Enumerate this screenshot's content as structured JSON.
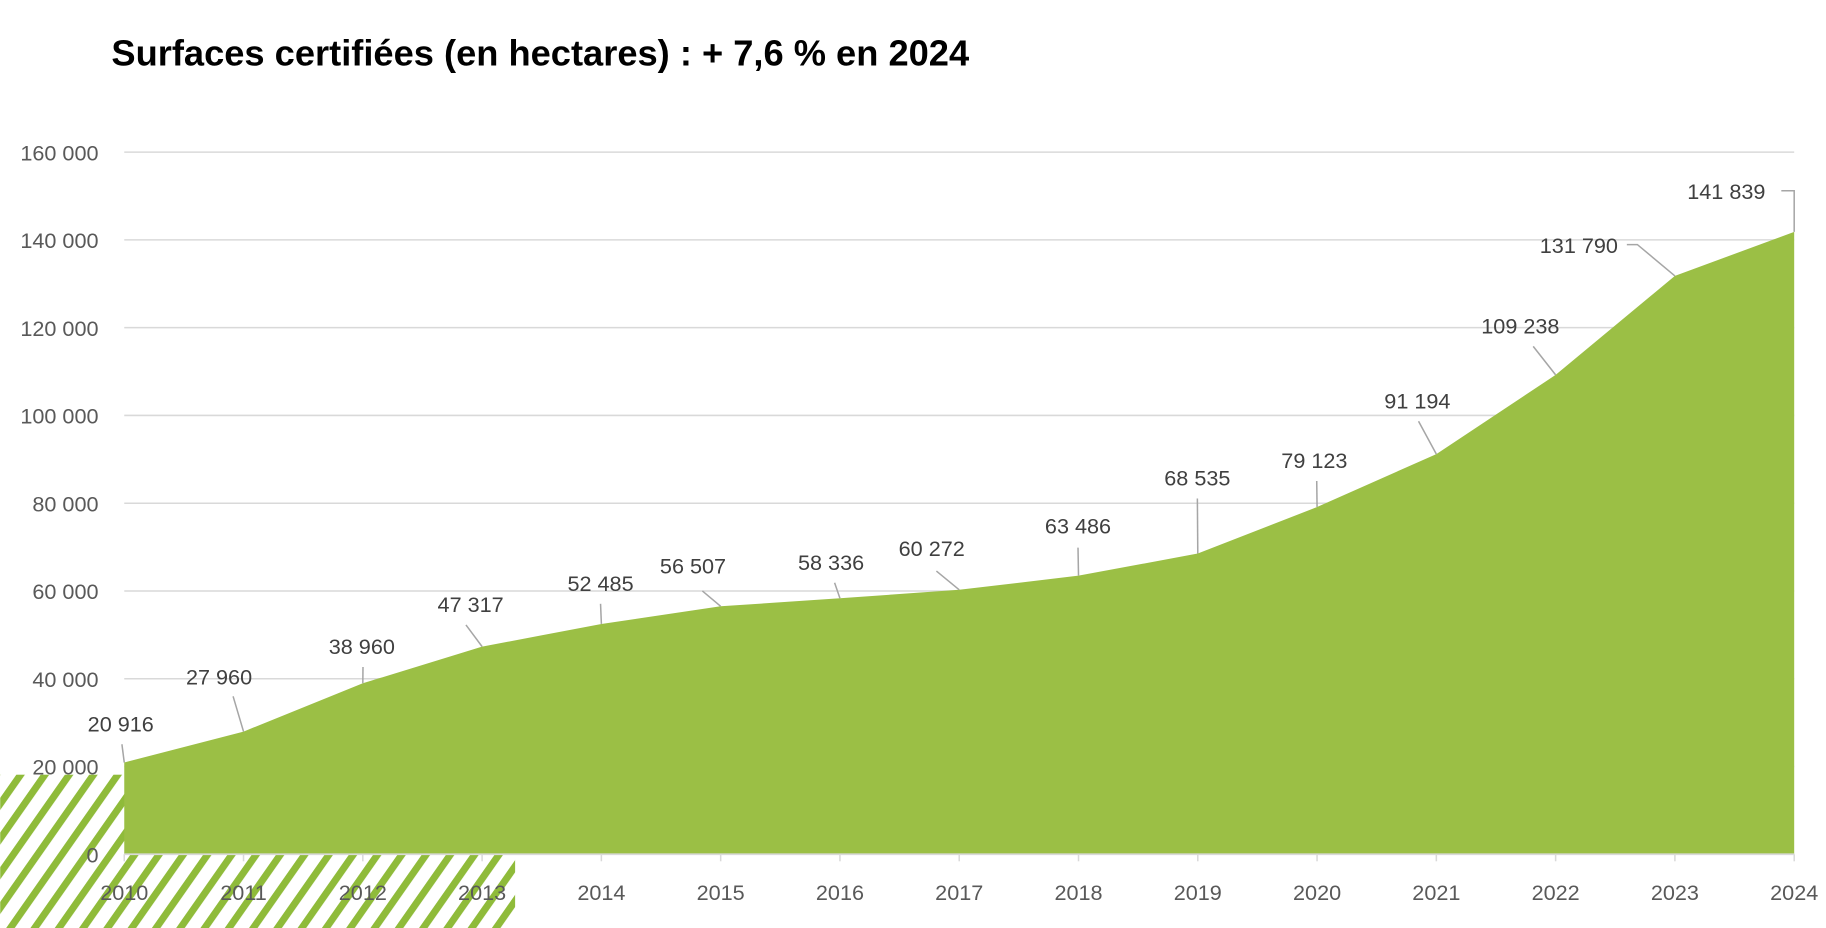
{
  "chart_data": {
    "type": "area",
    "title": "Surfaces certifiées (en hectares) : + 7,6 % en 2024",
    "xlabel": "",
    "ylabel": "",
    "categories": [
      "2010",
      "2011",
      "2012",
      "2013",
      "2014",
      "2015",
      "2016",
      "2017",
      "2018",
      "2019",
      "2020",
      "2021",
      "2022",
      "2023",
      "2024"
    ],
    "values": [
      20916,
      27960,
      38960,
      47317,
      52485,
      56507,
      58336,
      60272,
      63486,
      68535,
      79123,
      91194,
      109238,
      131790,
      141839
    ],
    "data_labels": [
      "20 916",
      "27 960",
      "38 960",
      "47 317",
      "52 485",
      "56 507",
      "58 336",
      "60 272",
      "63 486",
      "68 535",
      "79 123",
      "91 194",
      "109 238",
      "131 790",
      "141 839"
    ],
    "ylim": [
      0,
      160000
    ],
    "yticks": [
      0,
      20000,
      40000,
      60000,
      80000,
      100000,
      120000,
      140000,
      160000
    ],
    "ytick_labels": [
      "0",
      "20 000",
      "40 000",
      "60 000",
      "80 000",
      "100 000",
      "120 000",
      "140 000",
      "160 000"
    ],
    "grid": true,
    "legend": "none",
    "colors": {
      "area": "#9bbf45",
      "hatch": "#8fbb3a"
    }
  }
}
